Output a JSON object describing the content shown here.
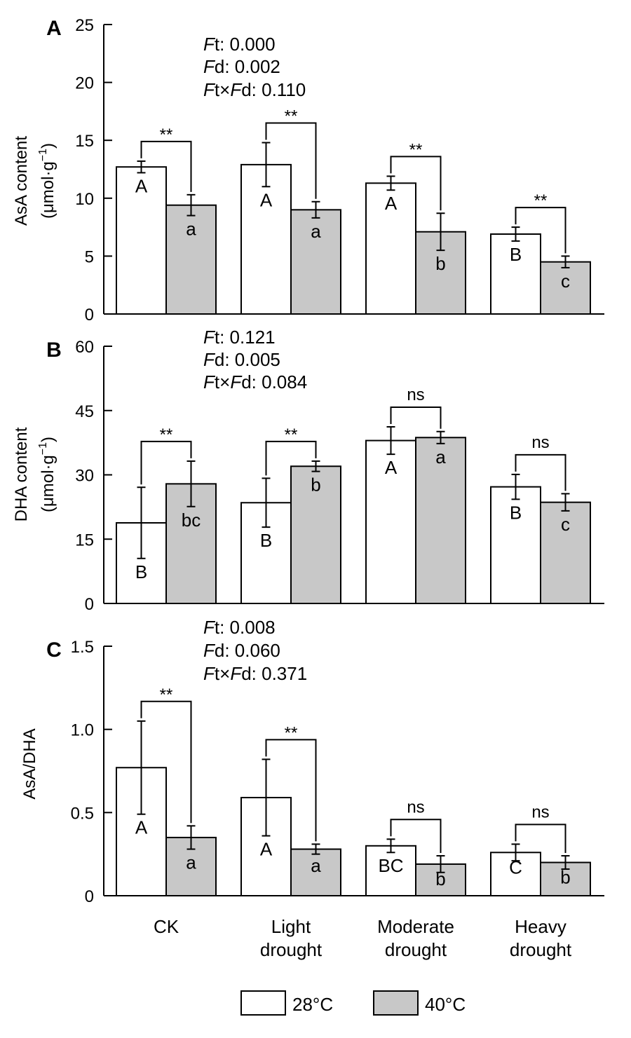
{
  "legend": {
    "items": [
      {
        "label": "28°C",
        "color": "#ffffff"
      },
      {
        "label": "40°C",
        "color": "#c8c8c8"
      }
    ],
    "placement": "bottom-center"
  },
  "chart_data": [
    {
      "type": "bar",
      "panel_label": "A",
      "ylabel": "AsA content",
      "yunit_base": "(μmol·g",
      "yunit_sup": "−1",
      "yunit_end": ")",
      "ylim": [
        0,
        25
      ],
      "yticks": [
        0,
        5,
        10,
        15,
        20,
        25
      ],
      "ytick_labels": [
        "0",
        "5",
        "10",
        "15",
        "20",
        "25"
      ],
      "stats": [
        {
          "f1": "F",
          "t1": "t: 0.000"
        },
        {
          "f1": "F",
          "t1": "d: 0.002"
        },
        {
          "f1": "F",
          "t1": "t×",
          "f2": "F",
          "t2": "d: 0.110"
        }
      ],
      "categories": [
        "CK",
        "Light drought",
        "Moderate drought",
        "Heavy drought"
      ],
      "series": [
        {
          "name": "28°C",
          "values": [
            12.7,
            12.9,
            11.3,
            6.9
          ],
          "errors": [
            0.5,
            1.9,
            0.6,
            0.6
          ],
          "letters": [
            "A",
            "A",
            "A",
            "B"
          ]
        },
        {
          "name": "40°C",
          "values": [
            9.4,
            9.0,
            7.1,
            4.5
          ],
          "errors": [
            0.9,
            0.7,
            1.6,
            0.5
          ],
          "letters": [
            "a",
            "a",
            "b",
            "c"
          ]
        }
      ],
      "significance": [
        "**",
        "**",
        "**",
        "**"
      ]
    },
    {
      "type": "bar",
      "panel_label": "B",
      "ylabel": "DHA content",
      "yunit_base": "(μmol·g",
      "yunit_sup": "−1",
      "yunit_end": ")",
      "ylim": [
        0,
        60
      ],
      "yticks": [
        0,
        15,
        30,
        45,
        60
      ],
      "ytick_labels": [
        "0",
        "15",
        "30",
        "45",
        "60"
      ],
      "stats": [
        {
          "f1": "F",
          "t1": "t: 0.121"
        },
        {
          "f1": "F",
          "t1": "d: 0.005"
        },
        {
          "f1": "F",
          "t1": "t×",
          "f2": "F",
          "t2": "d: 0.084"
        }
      ],
      "categories": [
        "CK",
        "Light drought",
        "Moderate drought",
        "Heavy drought"
      ],
      "series": [
        {
          "name": "28°C",
          "values": [
            18.8,
            23.5,
            38.0,
            27.2
          ],
          "errors": [
            8.3,
            5.7,
            3.2,
            2.9
          ],
          "letters": [
            "B",
            "B",
            "A",
            "B"
          ]
        },
        {
          "name": "40°C",
          "values": [
            27.9,
            32.0,
            38.7,
            23.6
          ],
          "errors": [
            5.3,
            1.2,
            1.4,
            2.0
          ],
          "letters": [
            "bc",
            "b",
            "a",
            "c"
          ]
        }
      ],
      "significance": [
        "**",
        "**",
        "ns",
        "ns"
      ]
    },
    {
      "type": "bar",
      "panel_label": "C",
      "ylabel": "AsA/DHA",
      "ylim": [
        0,
        1.5
      ],
      "yticks": [
        0,
        0.5,
        1.0,
        1.5
      ],
      "ytick_labels": [
        "0",
        "0.5",
        "1.0",
        "1.5"
      ],
      "stats": [
        {
          "f1": "F",
          "t1": "t: 0.008"
        },
        {
          "f1": "F",
          "t1": "d: 0.060"
        },
        {
          "f1": "F",
          "t1": "t×",
          "f2": "F",
          "t2": "d: 0.371"
        }
      ],
      "categories": [
        "CK",
        "Light drought",
        "Moderate drought",
        "Heavy drought"
      ],
      "category_lines": [
        [
          "CK"
        ],
        [
          "Light",
          "drought"
        ],
        [
          "Moderate",
          "drought"
        ],
        [
          "Heavy",
          "drought"
        ]
      ],
      "series": [
        {
          "name": "28°C",
          "values": [
            0.77,
            0.59,
            0.3,
            0.26
          ],
          "errors": [
            0.28,
            0.23,
            0.04,
            0.05
          ],
          "letters": [
            "A",
            "A",
            "BC",
            "C"
          ]
        },
        {
          "name": "40°C",
          "values": [
            0.35,
            0.28,
            0.19,
            0.2
          ],
          "errors": [
            0.07,
            0.03,
            0.05,
            0.04
          ],
          "letters": [
            "a",
            "a",
            "b",
            "b"
          ]
        }
      ],
      "significance": [
        "**",
        "**",
        "ns",
        "ns"
      ]
    }
  ]
}
